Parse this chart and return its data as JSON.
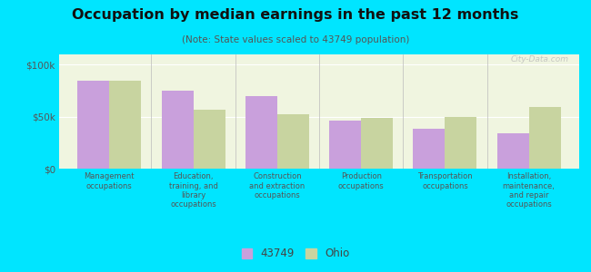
{
  "title": "Occupation by median earnings in the past 12 months",
  "subtitle": "(Note: State values scaled to 43749 population)",
  "categories": [
    "Management\noccupations",
    "Education,\ntraining, and\nlibrary\noccupations",
    "Construction\nand extraction\noccupations",
    "Production\noccupations",
    "Transportation\noccupations",
    "Installation,\nmaintenance,\nand repair\noccupations"
  ],
  "values_43749": [
    85000,
    75000,
    70000,
    46000,
    38000,
    34000
  ],
  "values_ohio": [
    85000,
    57000,
    52000,
    49000,
    50000,
    59000
  ],
  "color_43749": "#c9a0dc",
  "color_ohio": "#c8d4a0",
  "ylim": [
    0,
    110000
  ],
  "yticks": [
    0,
    50000,
    100000
  ],
  "ytick_labels": [
    "$0",
    "$50k",
    "$100k"
  ],
  "background_color": "#00e5ff",
  "plot_bg_color": "#f0f5e0",
  "bar_width": 0.38,
  "legend_labels": [
    "43749",
    "Ohio"
  ],
  "watermark": "City-Data.com"
}
